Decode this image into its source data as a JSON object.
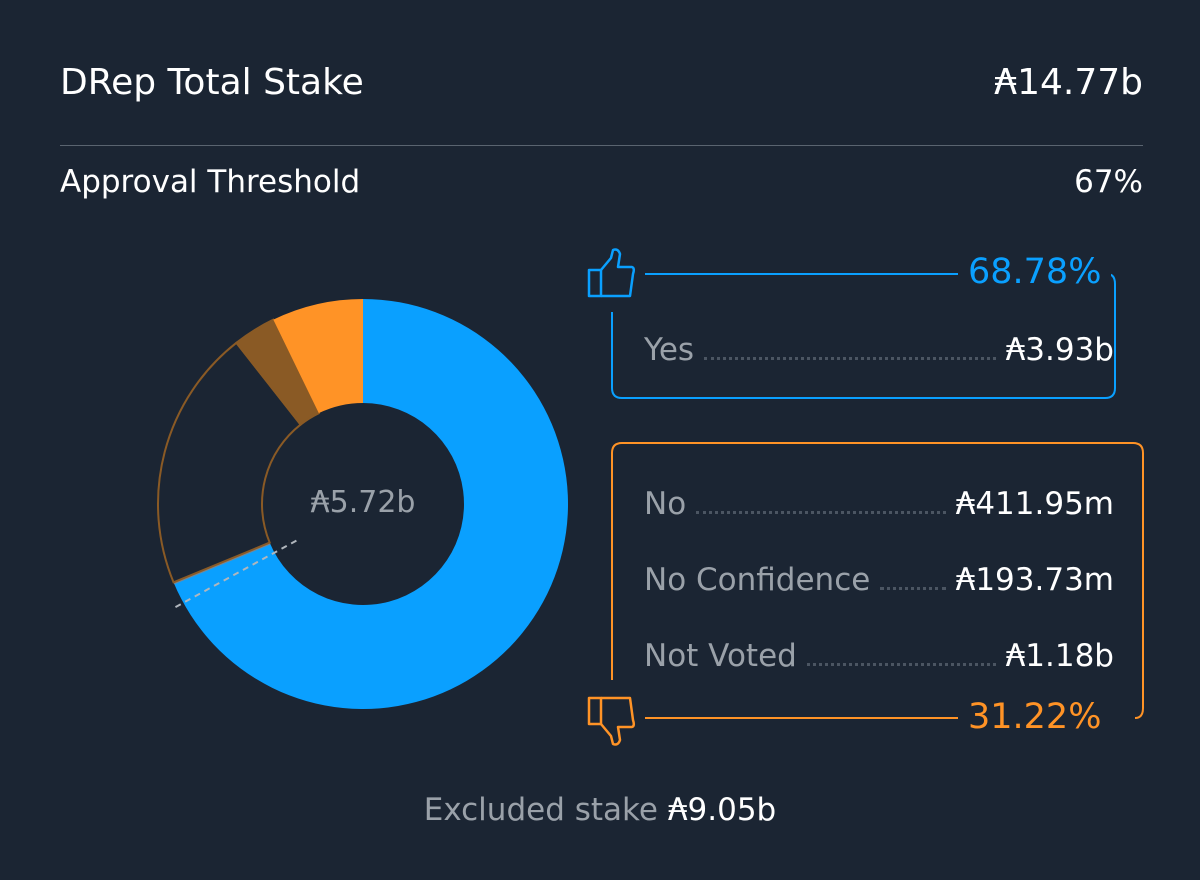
{
  "header": {
    "title": "DRep Total Stake",
    "total": "₳14.77b"
  },
  "threshold": {
    "label": "Approval Threshold",
    "value": "67%"
  },
  "yes_box": {
    "percent": "68.78%",
    "label": "Yes",
    "value": "₳3.93b",
    "icon": "thumbs-up-icon",
    "color": "#0aa0ff"
  },
  "no_box": {
    "percent": "31.22%",
    "icon": "thumbs-down-icon",
    "color": "#ff9326",
    "rows": [
      {
        "label": "No",
        "value": "₳411.95m"
      },
      {
        "label": "No Confidence",
        "value": "₳193.73m"
      },
      {
        "label": "Not Voted",
        "value": "₳1.18b"
      }
    ]
  },
  "footer": {
    "label": "Excluded stake",
    "value": "₳9.05b"
  },
  "chart_data": {
    "type": "pie",
    "style": "donut",
    "center_label": "₳5.72b",
    "threshold_percent": 67,
    "unit": "₳ billions",
    "slices": [
      {
        "label": "Yes",
        "value": 3.93,
        "color": "#0aa0ff"
      },
      {
        "label": "Not Voted",
        "value": 1.18,
        "color": "outline #8a5a25"
      },
      {
        "label": "No Confidence",
        "value": 0.19373,
        "color": "#8a5a25"
      },
      {
        "label": "No",
        "value": 0.41195,
        "color": "#ff9326"
      }
    ]
  }
}
